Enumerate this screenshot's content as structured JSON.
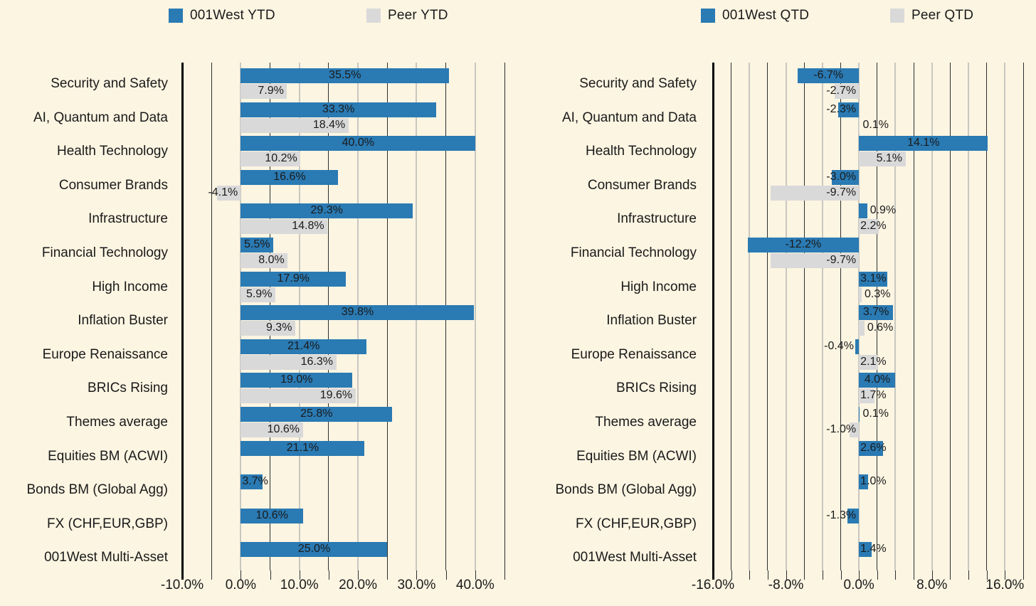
{
  "colors": {
    "background": "#FCF5E2",
    "primary": "#2A7AB3",
    "peer": "#D9D9D9",
    "text": "#1A1A1A",
    "grid_dark": "#2E2E2E",
    "grid_light": "#C8C7C0",
    "spine": "#000000"
  },
  "legend_ytd": {
    "items": [
      {
        "label": "001West YTD",
        "series": "primary",
        "swatch": "blue-square-icon"
      },
      {
        "label": "Peer YTD",
        "series": "peer",
        "swatch": "gray-square-icon"
      }
    ]
  },
  "legend_qtd": {
    "items": [
      {
        "label": "001West QTD",
        "series": "primary",
        "swatch": "blue-square-icon"
      },
      {
        "label": "Peer QTD",
        "series": "peer",
        "swatch": "gray-square-icon"
      }
    ]
  },
  "chart_data": [
    {
      "type": "bar",
      "orientation": "horizontal",
      "title": "",
      "legend_position": "top",
      "grid": true,
      "grid_step": 5,
      "xlim": [
        -10,
        45
      ],
      "x_tick_values": [
        -10,
        0,
        10,
        20,
        30,
        40
      ],
      "x_tick_labels": [
        "-10.0%",
        "0.0%",
        "10.0%",
        "20.0%",
        "30.0%",
        "40.0%"
      ],
      "categories": [
        "Security and Safety",
        "AI, Quantum and Data",
        "Health Technology",
        "Consumer Brands",
        "Infrastructure",
        "Financial Technology",
        "High Income",
        "Inflation Buster",
        "Europe Renaissance",
        "BRICs Rising",
        "Themes average",
        "Equities BM (ACWI)",
        "Bonds BM (Global Agg)",
        "FX (CHF,EUR,GBP)",
        "001West Multi-Asset"
      ],
      "series": [
        {
          "name": "001West YTD",
          "values": [
            35.5,
            33.3,
            40.0,
            16.6,
            29.3,
            5.5,
            17.9,
            39.8,
            21.4,
            19.0,
            25.8,
            21.1,
            3.7,
            10.6,
            25.0
          ],
          "labels": [
            "35.5%",
            "33.3%",
            "40.0%",
            "16.6%",
            "29.3%",
            "5.5%",
            "17.9%",
            "39.8%",
            "21.4%",
            "19.0%",
            "25.8%",
            "21.1%",
            "3.7%",
            "10.6%",
            "25.0%"
          ]
        },
        {
          "name": "Peer YTD",
          "values": [
            7.9,
            18.4,
            10.2,
            -4.1,
            14.8,
            8.0,
            5.9,
            9.3,
            16.3,
            19.6,
            10.6,
            null,
            null,
            null,
            null
          ],
          "labels": [
            "7.9%",
            "18.4%",
            "10.2%",
            "-4.1%",
            "14.8%",
            "8.0%",
            "5.9%",
            "9.3%",
            "16.3%",
            "19.6%",
            "10.6%",
            null,
            null,
            null,
            null
          ]
        }
      ]
    },
    {
      "type": "bar",
      "orientation": "horizontal",
      "title": "",
      "legend_position": "top",
      "grid": true,
      "grid_step": 2,
      "xlim": [
        -16,
        18
      ],
      "x_tick_values": [
        -16,
        -8,
        0,
        8,
        16
      ],
      "x_tick_labels": [
        "-16.0%",
        "-8.0%",
        "0.0%",
        "8.0%",
        "16.0%"
      ],
      "categories": [
        "Security and Safety",
        "AI, Quantum and Data",
        "Health Technology",
        "Consumer Brands",
        "Infrastructure",
        "Financial Technology",
        "High Income",
        "Inflation Buster",
        "Europe Renaissance",
        "BRICs Rising",
        "Themes average",
        "Equities BM (ACWI)",
        "Bonds BM (Global Agg)",
        "FX (CHF,EUR,GBP)",
        "001West Multi-Asset"
      ],
      "series": [
        {
          "name": "001West QTD",
          "values": [
            -6.7,
            -2.3,
            14.1,
            -3.0,
            0.9,
            -12.2,
            3.1,
            3.7,
            -0.4,
            4.0,
            0.1,
            2.6,
            1.0,
            -1.3,
            1.4
          ],
          "labels": [
            "-6.7%",
            "-2.3%",
            "14.1%",
            "-3.0%",
            "0.9%",
            "-12.2%",
            "3.1%",
            "3.7%",
            "-0.4%",
            "4.0%",
            "0.1%",
            "2.6%",
            "1.0%",
            "-1.3%",
            "1.4%"
          ]
        },
        {
          "name": "Peer QTD",
          "values": [
            -2.7,
            0.1,
            5.1,
            -9.7,
            2.2,
            -9.7,
            0.3,
            0.6,
            2.1,
            1.7,
            -1.0,
            null,
            null,
            null,
            null
          ],
          "labels": [
            "-2.7%",
            "0.1%",
            "5.1%",
            "-9.7%",
            "2.2%",
            "-9.7%",
            "0.3%",
            "0.6%",
            "2.1%",
            "1.7%",
            "-1.0%",
            null,
            null,
            null,
            null
          ]
        }
      ]
    }
  ]
}
